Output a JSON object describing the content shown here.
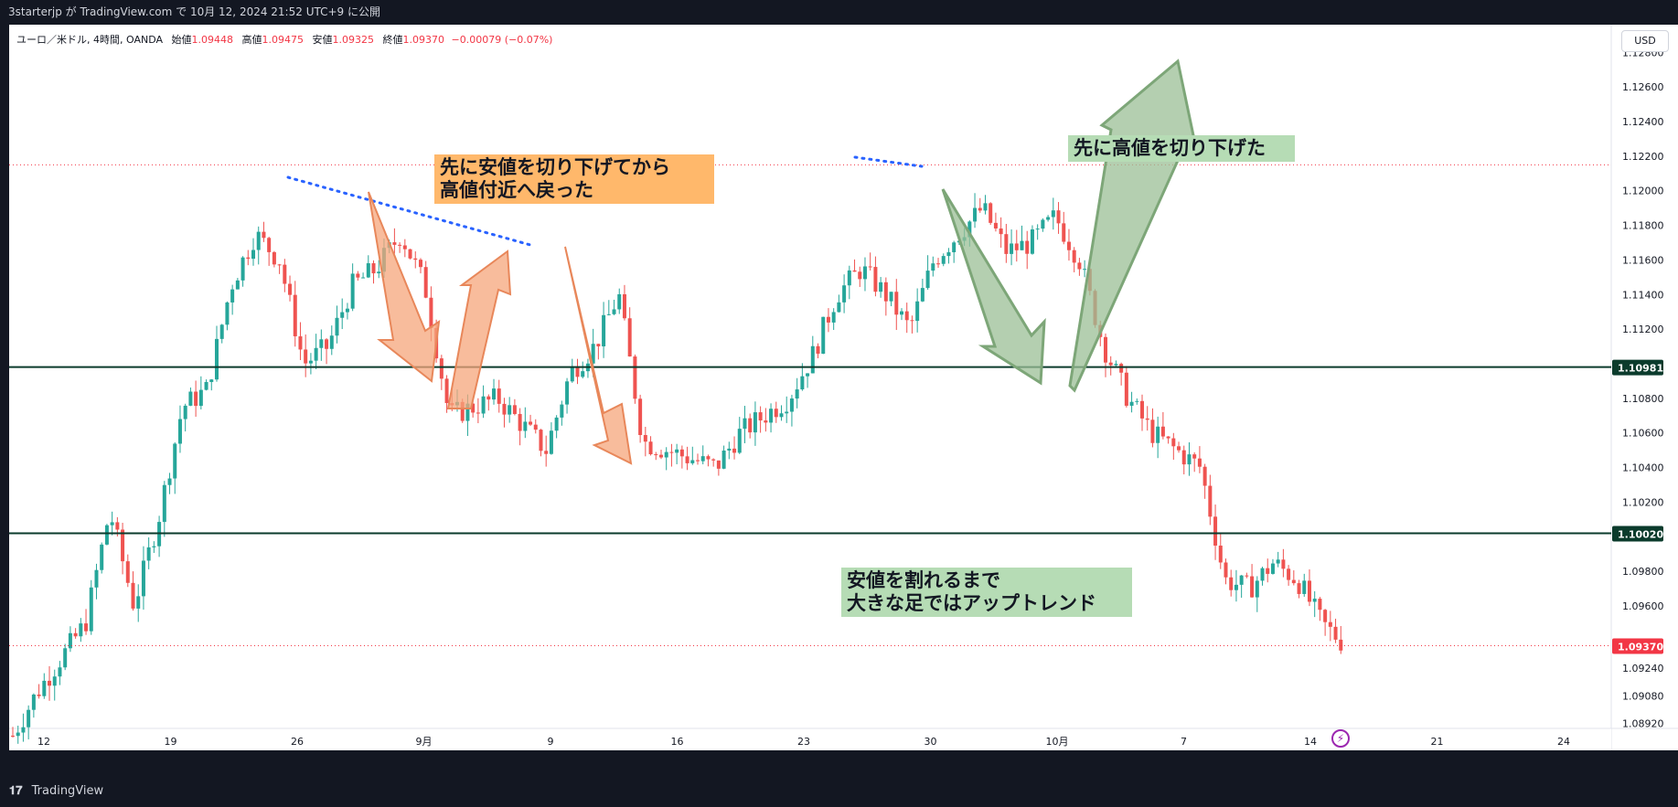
{
  "topbar": {
    "text": "3starterjp が TradingView.com で 10月 12, 2024 21:52 UTC+9 に公開"
  },
  "legend": {
    "symbol": "ユーロ／米ドル, 4時間, OANDA",
    "open_label": "始値",
    "open": "1.09448",
    "high_label": "高値",
    "high": "1.09475",
    "low_label": "安値",
    "low": "1.09325",
    "close_label": "終値",
    "close": "1.09370",
    "change": "−0.00079 (−0.07%)"
  },
  "currency": "USD",
  "footer": {
    "brand": "TradingView",
    "logo": "TV-logo-icon"
  },
  "annotations": {
    "orange_note": [
      "先に安値を切り下げてから",
      "高値付近へ戻った"
    ],
    "green_note_top": "先に高値を切り下げた",
    "green_note_bottom": [
      "安値を割れるまで",
      "大きな足ではアップトレンド"
    ]
  },
  "colors": {
    "up": "#26a69a",
    "down": "#ef5350",
    "horizontal_line": "#0b3b2c",
    "trend_dotted": "#2962ff",
    "price_label": "#f23645",
    "orange_arrow": "#f5a67b",
    "green_arrow": "#9bbf96"
  },
  "chart_data": {
    "type": "candlestick",
    "symbol": "EURUSD",
    "timeframe": "4H",
    "ylim": [
      1.0876,
      1.1296
    ],
    "y_ticks": [
      "1.12800",
      "1.12600",
      "1.12400",
      "1.12200",
      "1.12000",
      "1.11800",
      "1.11600",
      "1.11400",
      "1.11200",
      "1.10800",
      "1.10600",
      "1.10400",
      "1.10200",
      "1.09800",
      "1.09600",
      "1.09240",
      "1.09080",
      "1.08920"
    ],
    "x_ticks": [
      "12",
      "19",
      "26",
      "9月",
      "9",
      "16",
      "23",
      "30",
      "10月",
      "7",
      "14",
      "21",
      "24"
    ],
    "levels": [
      {
        "price": 1.10981,
        "label": "1.10981"
      },
      {
        "price": 1.1002,
        "label": "1.10020"
      }
    ],
    "last_price": {
      "price": 1.0937,
      "label": "1.09370"
    },
    "dotted_levels": [
      1.1215
    ],
    "path": [
      [
        "12",
        1.0885
      ],
      [
        "14",
        1.091
      ],
      [
        "16",
        1.093
      ],
      [
        "17",
        1.095
      ],
      [
        "18",
        1.1015
      ],
      [
        "19",
        1.096
      ],
      [
        "21",
        1.101
      ],
      [
        "22",
        1.1075
      ],
      [
        "23",
        1.1085
      ],
      [
        "25",
        1.1145
      ],
      [
        "26",
        1.1175
      ],
      [
        "27",
        1.116
      ],
      [
        "28",
        1.11
      ],
      [
        "29",
        1.111
      ],
      [
        "30",
        1.1145
      ],
      [
        "31",
        1.1155
      ],
      [
        "9月",
        1.1175
      ],
      [
        "9/2",
        1.1145
      ],
      [
        "9/3",
        1.107
      ],
      [
        "9/4",
        1.1075
      ],
      [
        "9/5",
        1.108
      ],
      [
        "9/6",
        1.1065
      ],
      [
        "9/7",
        1.105
      ],
      [
        "9/8",
        1.1095
      ],
      [
        "9",
        1.111
      ],
      [
        "9/10",
        1.114
      ],
      [
        "9/11",
        1.1055
      ],
      [
        "9/12",
        1.105
      ],
      [
        "9/13",
        1.1045
      ],
      [
        "9/14",
        1.104
      ],
      [
        "16",
        1.106
      ],
      [
        "17",
        1.107
      ],
      [
        "18",
        1.108
      ],
      [
        "19",
        1.1105
      ],
      [
        "20",
        1.114
      ],
      [
        "21",
        1.1155
      ],
      [
        "23",
        1.114
      ],
      [
        "24",
        1.112
      ],
      [
        "25",
        1.116
      ],
      [
        "26",
        1.1175
      ],
      [
        "27",
        1.119
      ],
      [
        "28",
        1.1165
      ],
      [
        "29",
        1.117
      ],
      [
        "30",
        1.1185
      ],
      [
        "10月",
        1.116
      ],
      [
        "10/2",
        1.111
      ],
      [
        "10/3",
        1.108
      ],
      [
        "10/4",
        1.106
      ],
      [
        "10/5",
        1.105
      ],
      [
        "10/6",
        1.104
      ],
      [
        "7",
        1.0975
      ],
      [
        "10/8",
        1.097
      ],
      [
        "10/9",
        1.0985
      ],
      [
        "10/10",
        1.0975
      ],
      [
        "10/11",
        1.095
      ],
      [
        "10/12",
        1.0937
      ]
    ]
  }
}
